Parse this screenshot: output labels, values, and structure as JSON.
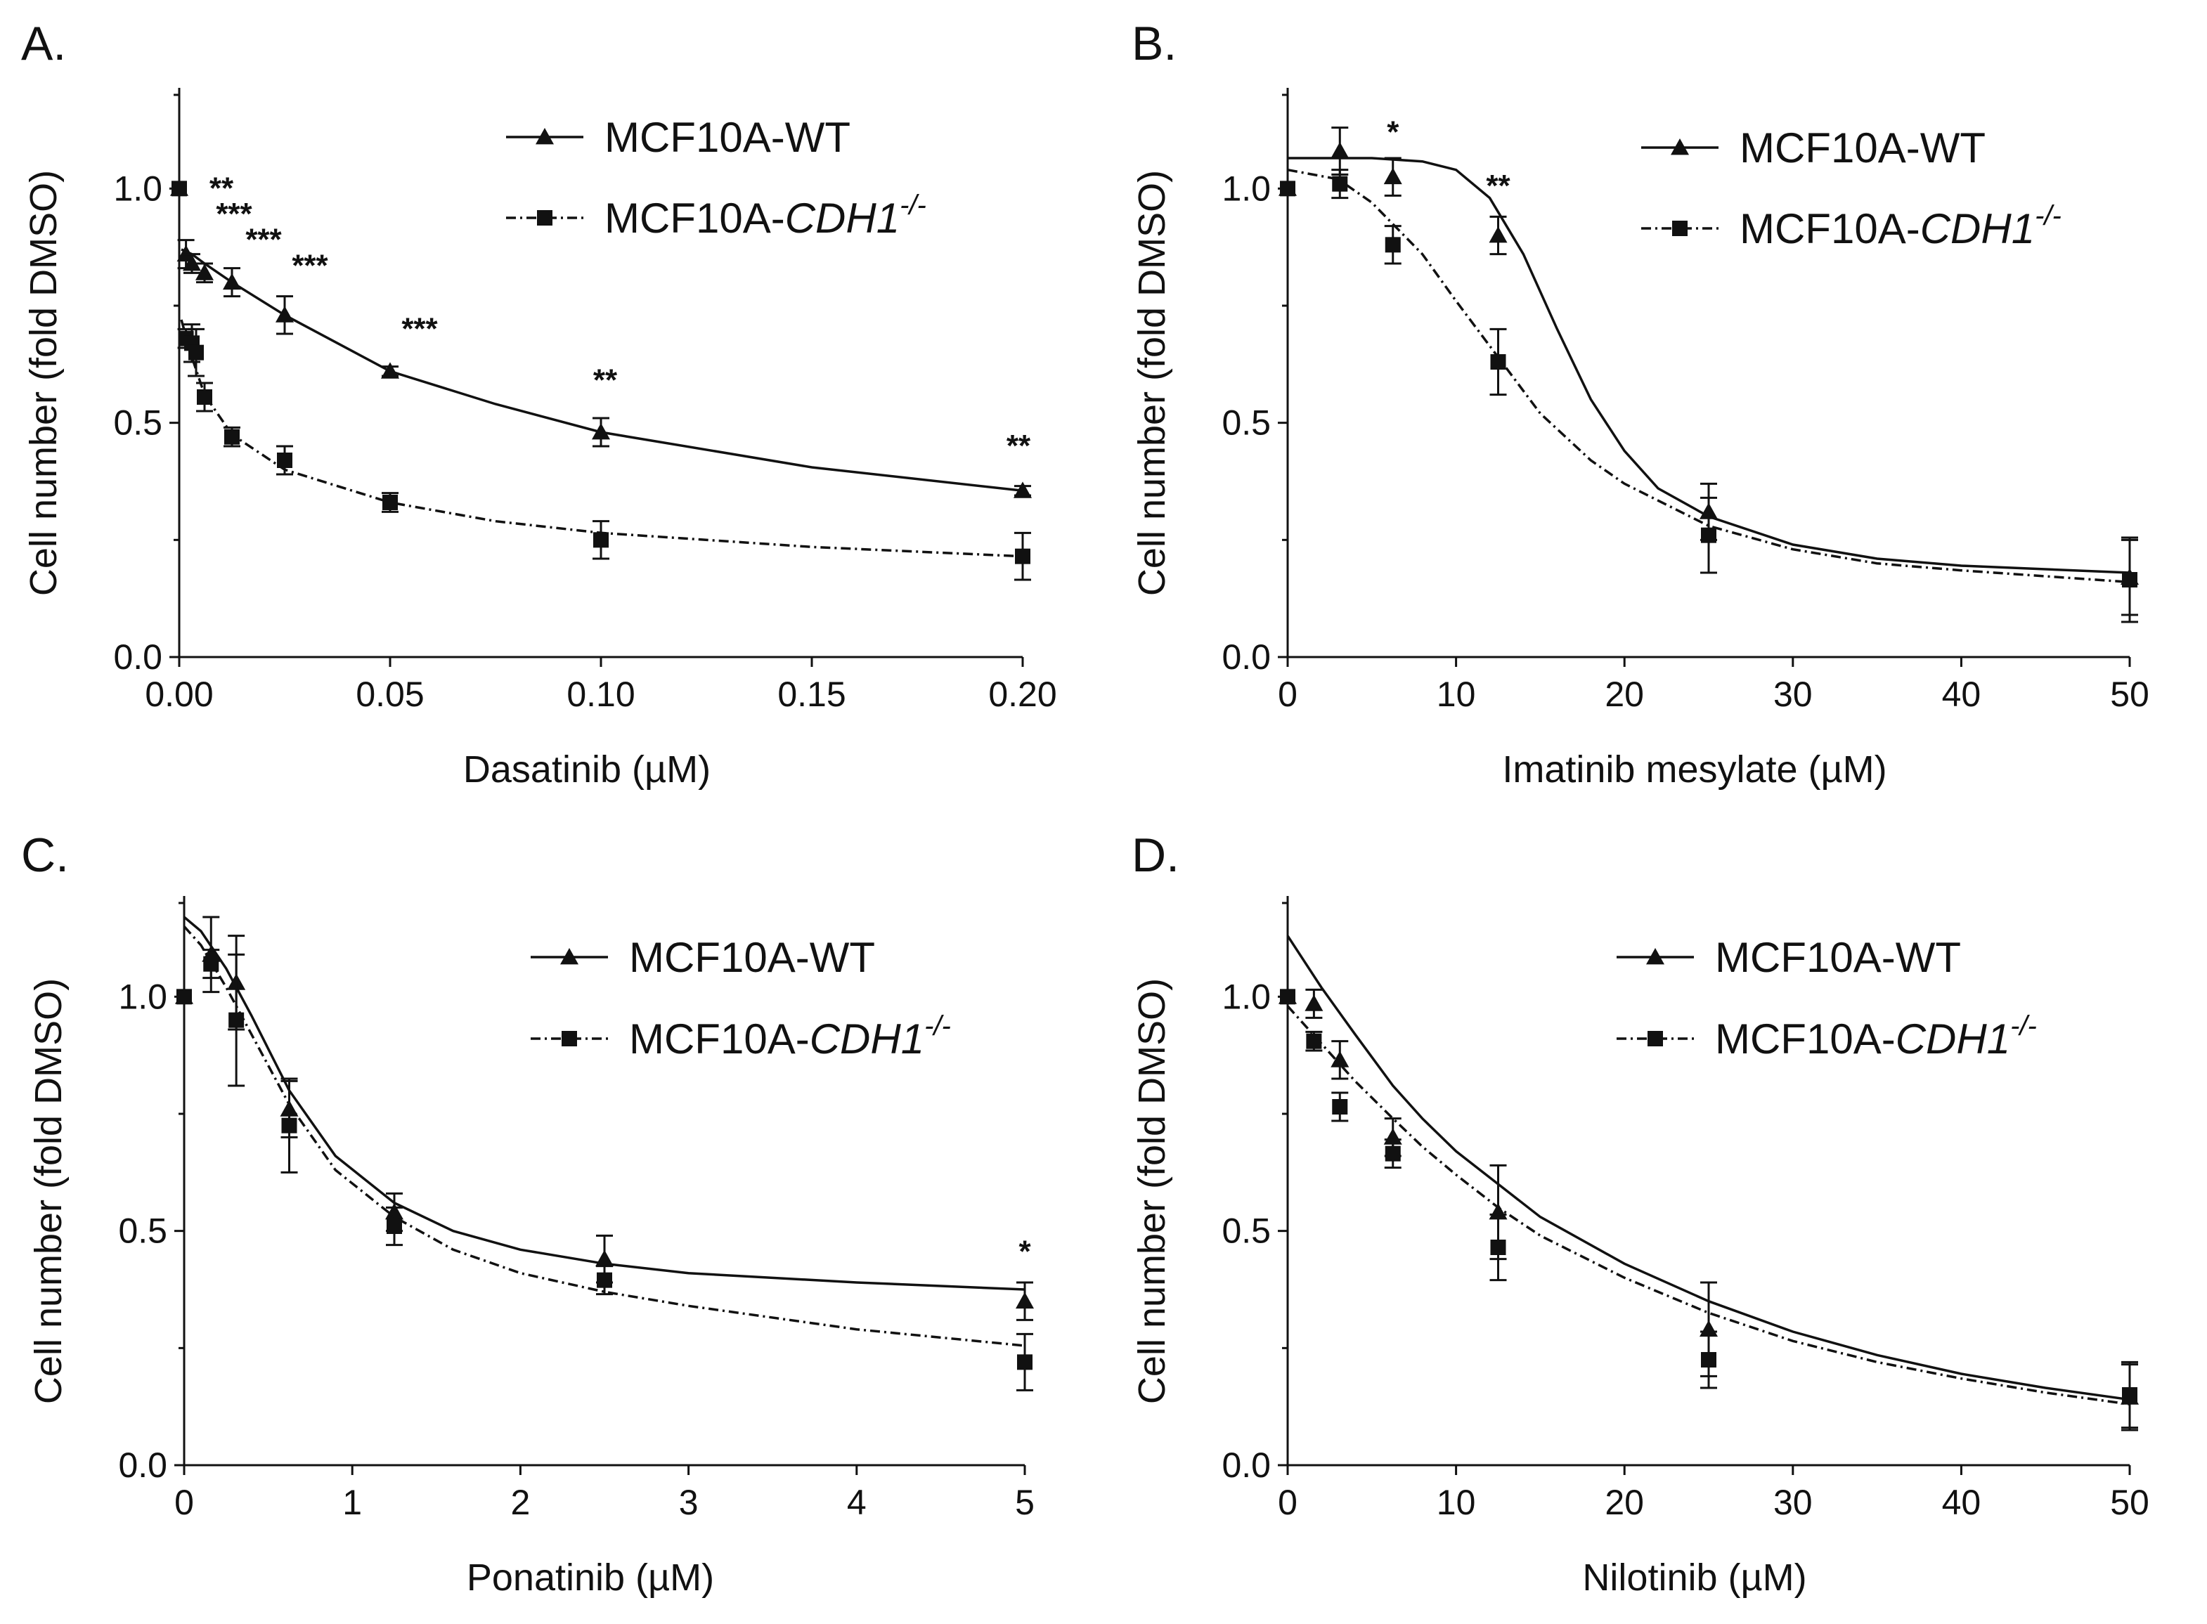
{
  "figure_title": "",
  "chart_data": [
    {
      "type": "line",
      "panel": "A.",
      "xlabel": "Dasatinib (µM)",
      "ylabel": "Cell number (fold DMSO)",
      "xlim": [
        0,
        0.2
      ],
      "ylim": [
        0,
        1.2
      ],
      "xticks": [
        0,
        0.05,
        0.1,
        0.15,
        0.2
      ],
      "xtick_labels": [
        "0.00",
        "0.05",
        "0.10",
        "0.15",
        "0.20"
      ],
      "yticks": [
        0,
        0.5,
        1.0
      ],
      "ytick_labels": [
        "0.0",
        "0.5",
        "1.0"
      ],
      "legend_position": "top-right",
      "series": [
        {
          "name": "MCF10A-WT",
          "marker": "triangle",
          "line": "solid",
          "points": [
            [
              0,
              1.0
            ],
            [
              0.0016,
              0.86
            ],
            [
              0.003,
              0.84
            ],
            [
              0.006,
              0.82
            ],
            [
              0.0125,
              0.8
            ],
            [
              0.025,
              0.73
            ],
            [
              0.05,
              0.61
            ],
            [
              0.1,
              0.48
            ],
            [
              0.2,
              0.355
            ]
          ],
          "errors": [
            0,
            0.03,
            0.02,
            0.02,
            0.03,
            0.04,
            0.01,
            0.03,
            0.01
          ],
          "fit": [
            [
              0.0005,
              0.87
            ],
            [
              0.003,
              0.86
            ],
            [
              0.006,
              0.84
            ],
            [
              0.0125,
              0.8
            ],
            [
              0.025,
              0.73
            ],
            [
              0.05,
              0.61
            ],
            [
              0.075,
              0.54
            ],
            [
              0.1,
              0.48
            ],
            [
              0.15,
              0.405
            ],
            [
              0.2,
              0.355
            ]
          ]
        },
        {
          "name": "MCF10A-CDH1",
          "marker": "square",
          "line": "dashdot",
          "points": [
            [
              0,
              1.0
            ],
            [
              0.0016,
              0.68
            ],
            [
              0.003,
              0.67
            ],
            [
              0.004,
              0.65
            ],
            [
              0.006,
              0.555
            ],
            [
              0.0125,
              0.47
            ],
            [
              0.025,
              0.42
            ],
            [
              0.05,
              0.33
            ],
            [
              0.1,
              0.25
            ],
            [
              0.2,
              0.215
            ]
          ],
          "errors": [
            0,
            0.02,
            0.04,
            0.05,
            0.03,
            0.02,
            0.03,
            0.02,
            0.04,
            0.05
          ],
          "fit": [
            [
              0.0005,
              0.72
            ],
            [
              0.003,
              0.64
            ],
            [
              0.006,
              0.56
            ],
            [
              0.0125,
              0.475
            ],
            [
              0.025,
              0.4
            ],
            [
              0.05,
              0.33
            ],
            [
              0.075,
              0.29
            ],
            [
              0.1,
              0.265
            ],
            [
              0.15,
              0.235
            ],
            [
              0.2,
              0.215
            ]
          ]
        }
      ],
      "significance": [
        {
          "x": 0.01,
          "y": 1.0,
          "text": "**"
        },
        {
          "x": 0.013,
          "y": 0.945,
          "text": "***"
        },
        {
          "x": 0.02,
          "y": 0.89,
          "text": "***"
        },
        {
          "x": 0.031,
          "y": 0.835,
          "text": "***"
        },
        {
          "x": 0.057,
          "y": 0.7,
          "text": "***"
        },
        {
          "x": 0.101,
          "y": 0.59,
          "text": "**"
        },
        {
          "x": 0.199,
          "y": 0.45,
          "text": "**"
        }
      ]
    },
    {
      "type": "line",
      "panel": "B.",
      "xlabel": "Imatinib mesylate (µM)",
      "ylabel": "Cell number (fold DMSO)",
      "xlim": [
        0,
        50
      ],
      "ylim": [
        0,
        1.2
      ],
      "xticks": [
        0,
        10,
        20,
        30,
        40,
        50
      ],
      "xtick_labels": [
        "0",
        "10",
        "20",
        "30",
        "40",
        "50"
      ],
      "yticks": [
        0,
        0.5,
        1.0
      ],
      "ytick_labels": [
        "0.0",
        "0.5",
        "1.0"
      ],
      "legend_position": "top-right",
      "series": [
        {
          "name": "MCF10A-WT",
          "marker": "triangle",
          "line": "solid",
          "points": [
            [
              0,
              1.0
            ],
            [
              3.1,
              1.08
            ],
            [
              6.25,
              1.025
            ],
            [
              12.5,
              0.9
            ],
            [
              25,
              0.31
            ],
            [
              50,
              0.17
            ]
          ],
          "errors": [
            0,
            0.05,
            0.04,
            0.04,
            0.06,
            0.08
          ],
          "fit": [
            [
              0,
              1.065
            ],
            [
              5,
              1.065
            ],
            [
              8,
              1.058
            ],
            [
              10,
              1.04
            ],
            [
              12,
              0.98
            ],
            [
              14,
              0.86
            ],
            [
              16,
              0.7
            ],
            [
              18,
              0.55
            ],
            [
              20,
              0.44
            ],
            [
              22,
              0.36
            ],
            [
              25,
              0.3
            ],
            [
              30,
              0.24
            ],
            [
              35,
              0.21
            ],
            [
              40,
              0.195
            ],
            [
              50,
              0.18
            ]
          ]
        },
        {
          "name": "MCF10A-CDH1",
          "marker": "square",
          "line": "dashdot",
          "points": [
            [
              0,
              1.0
            ],
            [
              3.1,
              1.01
            ],
            [
              6.25,
              0.88
            ],
            [
              12.5,
              0.63
            ],
            [
              25,
              0.26
            ],
            [
              50,
              0.165
            ]
          ],
          "errors": [
            0,
            0.03,
            0.04,
            0.07,
            0.08,
            0.09
          ],
          "fit": [
            [
              0,
              1.04
            ],
            [
              3,
              1.02
            ],
            [
              5,
              0.97
            ],
            [
              8,
              0.86
            ],
            [
              10,
              0.76
            ],
            [
              12.5,
              0.64
            ],
            [
              15,
              0.52
            ],
            [
              18,
              0.42
            ],
            [
              20,
              0.37
            ],
            [
              25,
              0.28
            ],
            [
              30,
              0.23
            ],
            [
              35,
              0.2
            ],
            [
              40,
              0.185
            ],
            [
              50,
              0.16
            ]
          ]
        }
      ],
      "significance": [
        {
          "x": 6.25,
          "y": 1.12,
          "text": "*"
        },
        {
          "x": 12.5,
          "y": 1.005,
          "text": "**"
        }
      ]
    },
    {
      "type": "line",
      "panel": "C.",
      "xlabel": "Ponatinib (µM)",
      "ylabel": "Cell number (fold DMSO)",
      "xlim": [
        0,
        5
      ],
      "ylim": [
        0,
        1.2
      ],
      "xticks": [
        0,
        1,
        2,
        3,
        4,
        5
      ],
      "xtick_labels": [
        "0",
        "1",
        "2",
        "3",
        "4",
        "5"
      ],
      "yticks": [
        0,
        0.5,
        1.0
      ],
      "ytick_labels": [
        "0.0",
        "0.5",
        "1.0"
      ],
      "legend_position": "top-right",
      "series": [
        {
          "name": "MCF10A-WT",
          "marker": "triangle",
          "line": "solid",
          "points": [
            [
              0,
              1.0
            ],
            [
              0.16,
              1.09
            ],
            [
              0.31,
              1.03
            ],
            [
              0.625,
              0.76
            ],
            [
              1.25,
              0.54
            ],
            [
              2.5,
              0.44
            ],
            [
              5,
              0.35
            ]
          ],
          "errors": [
            0,
            0.08,
            0.1,
            0.06,
            0.04,
            0.05,
            0.04
          ],
          "fit": [
            [
              0,
              1.17
            ],
            [
              0.1,
              1.14
            ],
            [
              0.25,
              1.06
            ],
            [
              0.4,
              0.96
            ],
            [
              0.625,
              0.8
            ],
            [
              0.9,
              0.66
            ],
            [
              1.25,
              0.56
            ],
            [
              1.6,
              0.5
            ],
            [
              2,
              0.46
            ],
            [
              2.5,
              0.43
            ],
            [
              3,
              0.41
            ],
            [
              4,
              0.39
            ],
            [
              5,
              0.375
            ]
          ]
        },
        {
          "name": "MCF10A-CDH1",
          "marker": "square",
          "line": "dashdot",
          "points": [
            [
              0,
              1.0
            ],
            [
              0.16,
              1.07
            ],
            [
              0.31,
              0.95
            ],
            [
              0.625,
              0.725
            ],
            [
              1.25,
              0.51
            ],
            [
              2.5,
              0.395
            ],
            [
              5,
              0.22
            ]
          ],
          "errors": [
            0,
            0.03,
            0.14,
            0.1,
            0.04,
            0.03,
            0.06
          ],
          "fit": [
            [
              0,
              1.15
            ],
            [
              0.1,
              1.11
            ],
            [
              0.25,
              1.02
            ],
            [
              0.4,
              0.92
            ],
            [
              0.625,
              0.77
            ],
            [
              0.9,
              0.63
            ],
            [
              1.25,
              0.53
            ],
            [
              1.6,
              0.46
            ],
            [
              2,
              0.41
            ],
            [
              2.5,
              0.37
            ],
            [
              3,
              0.34
            ],
            [
              4,
              0.29
            ],
            [
              5,
              0.255
            ]
          ]
        }
      ],
      "significance": [
        {
          "x": 5,
          "y": 0.455,
          "text": "*"
        }
      ]
    },
    {
      "type": "line",
      "panel": "D.",
      "xlabel": "Nilotinib (µM)",
      "ylabel": "Cell number (fold DMSO)",
      "xlim": [
        0,
        50
      ],
      "ylim": [
        0,
        1.2
      ],
      "xticks": [
        0,
        10,
        20,
        30,
        40,
        50
      ],
      "xtick_labels": [
        "0",
        "10",
        "20",
        "30",
        "40",
        "50"
      ],
      "yticks": [
        0,
        0.5,
        1.0
      ],
      "ytick_labels": [
        "0.0",
        "0.5",
        "1.0"
      ],
      "legend_position": "top-right",
      "series": [
        {
          "name": "MCF10A-WT",
          "marker": "triangle",
          "line": "solid",
          "points": [
            [
              0,
              1.0
            ],
            [
              1.56,
              0.985
            ],
            [
              3.1,
              0.865
            ],
            [
              6.25,
              0.7
            ],
            [
              12.5,
              0.54
            ],
            [
              25,
              0.29
            ],
            [
              50,
              0.145
            ]
          ],
          "errors": [
            0,
            0.03,
            0.04,
            0.04,
            0.1,
            0.1,
            0.07
          ],
          "fit": [
            [
              0,
              1.13
            ],
            [
              2,
              1.02
            ],
            [
              4,
              0.92
            ],
            [
              6.25,
              0.81
            ],
            [
              8,
              0.74
            ],
            [
              10,
              0.67
            ],
            [
              12.5,
              0.6
            ],
            [
              15,
              0.53
            ],
            [
              20,
              0.43
            ],
            [
              25,
              0.35
            ],
            [
              30,
              0.285
            ],
            [
              35,
              0.235
            ],
            [
              40,
              0.195
            ],
            [
              45,
              0.165
            ],
            [
              50,
              0.14
            ]
          ]
        },
        {
          "name": "MCF10A-CDH1",
          "marker": "square",
          "line": "dashdot",
          "points": [
            [
              0,
              1.0
            ],
            [
              1.56,
              0.905
            ],
            [
              3.1,
              0.765
            ],
            [
              6.25,
              0.665
            ],
            [
              12.5,
              0.465
            ],
            [
              25,
              0.225
            ],
            [
              50,
              0.15
            ]
          ],
          "errors": [
            0,
            0.02,
            0.03,
            0.03,
            0.07,
            0.06,
            0.07
          ],
          "fit": [
            [
              0,
              0.98
            ],
            [
              2,
              0.9
            ],
            [
              4,
              0.82
            ],
            [
              6.25,
              0.74
            ],
            [
              8,
              0.68
            ],
            [
              10,
              0.62
            ],
            [
              12.5,
              0.55
            ],
            [
              15,
              0.49
            ],
            [
              20,
              0.4
            ],
            [
              25,
              0.325
            ],
            [
              30,
              0.265
            ],
            [
              35,
              0.22
            ],
            [
              40,
              0.185
            ],
            [
              45,
              0.155
            ],
            [
              50,
              0.13
            ]
          ]
        }
      ],
      "significance": []
    }
  ]
}
